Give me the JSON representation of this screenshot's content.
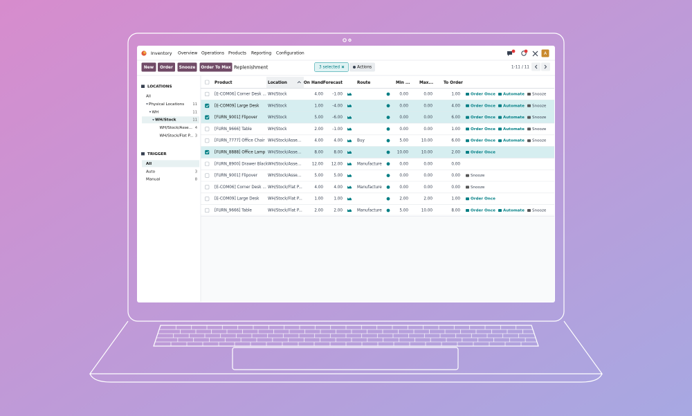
{
  "navbar": {
    "app": "Inventory",
    "menu": [
      "Overview",
      "Operations",
      "Products",
      "Reporting",
      "Configuration"
    ],
    "avatar": "A"
  },
  "control_panel": {
    "buttons": [
      "New",
      "Order",
      "Snooze",
      "Order To Max"
    ],
    "title": "Replenishment",
    "selection": "3 selected",
    "actions": "Actions",
    "pager": "1-11 / 11"
  },
  "sidebar": {
    "sections": [
      {
        "title": "LOCATIONS",
        "items": [
          {
            "label": "All",
            "level": 0
          },
          {
            "label": "Physical Locations",
            "count": "11",
            "level": 0,
            "expanded": true
          },
          {
            "label": "WH",
            "count": "11",
            "level": 1,
            "expanded": true
          },
          {
            "label": "WH/Stock",
            "count": "11",
            "level": 2,
            "expanded": true,
            "active": true
          },
          {
            "label": "WH/Stock/Asse...",
            "count": "4",
            "level": 3
          },
          {
            "label": "WH/Stock/Flat P...",
            "count": "3",
            "level": 3
          }
        ]
      },
      {
        "title": "TRIGGER",
        "items": [
          {
            "label": "All",
            "level": 0,
            "active": true
          },
          {
            "label": "Auto",
            "count": "3",
            "level": 0
          },
          {
            "label": "Manual",
            "count": "8",
            "level": 0
          }
        ]
      }
    ]
  },
  "table": {
    "columns": [
      "Product",
      "Location",
      "On Hand",
      "Forecast",
      "Route",
      "Min ...",
      "Max...",
      "To Order"
    ],
    "rows": [
      {
        "product": "[E-COM06] Corner Desk ...",
        "location": "WH/Stock",
        "on_hand": "4.00",
        "forecast": "-1.00",
        "min": "0.00",
        "max": "0.00",
        "to_order": "1.00",
        "actions": [
          "Order Once",
          "Automate",
          "Snooze"
        ]
      },
      {
        "product": "[E-COM09] Large Desk",
        "location": "WH/Stock",
        "on_hand": "1.00",
        "forecast": "-4.00",
        "min": "0.00",
        "max": "0.00",
        "to_order": "4.00",
        "actions": [
          "Order Once",
          "Automate",
          "Snooze"
        ],
        "selected": true
      },
      {
        "product": "[FURN_9001] Flipover",
        "location": "WH/Stock",
        "on_hand": "5.00",
        "forecast": "-6.00",
        "min": "0.00",
        "max": "0.00",
        "to_order": "6.00",
        "actions": [
          "Order Once",
          "Automate",
          "Snooze"
        ],
        "selected": true
      },
      {
        "product": "[FURN_9666] Table",
        "location": "WH/Stock",
        "on_hand": "2.00",
        "forecast": "-1.00",
        "min": "0.00",
        "max": "0.00",
        "to_order": "1.00",
        "actions": [
          "Order Once",
          "Automate",
          "Snooze"
        ]
      },
      {
        "product": "[FURN_7777] Office Chair",
        "location": "WH/Stock/Asse...",
        "on_hand": "4.00",
        "forecast": "4.00",
        "route": "Buy",
        "min": "5.00",
        "max": "10.00",
        "to_order": "6.00",
        "actions": [
          "Order Once",
          "Automate",
          "Snooze"
        ]
      },
      {
        "product": "[FURN_8888] Office Lamp",
        "location": "WH/Stock/Asse...",
        "on_hand": "8.00",
        "forecast": "8.00",
        "min": "10.00",
        "max": "10.00",
        "to_order": "2.00",
        "actions": [
          "Order Once"
        ],
        "selected": true
      },
      {
        "product": "[FURN_8900] Drawer Black",
        "location": "WH/Stock/Asse...",
        "on_hand": "12.00",
        "forecast": "12.00",
        "route": "Manufacture",
        "min": "0.00",
        "max": "0.00",
        "to_order": "0.00"
      },
      {
        "product": "[FURN_9001] Flipover",
        "location": "WH/Stock/Asse...",
        "on_hand": "5.00",
        "forecast": "5.00",
        "min": "0.00",
        "max": "0.00",
        "to_order": "0.00",
        "actions": [
          "Snooze"
        ]
      },
      {
        "product": "[E-COM06] Corner Desk ...",
        "location": "WH/Stock/Flat P...",
        "on_hand": "4.00",
        "forecast": "4.00",
        "route": "Manufacture",
        "min": "0.00",
        "max": "0.00",
        "to_order": "0.00",
        "actions": [
          "Snooze"
        ]
      },
      {
        "product": "[E-COM09] Large Desk",
        "location": "WH/Stock/Flat P...",
        "on_hand": "1.00",
        "forecast": "1.00",
        "min": "2.00",
        "max": "2.00",
        "to_order": "1.00",
        "actions": [
          "Order Once"
        ]
      },
      {
        "product": "[FURN_9666] Table",
        "location": "WH/Stock/Flat P...",
        "on_hand": "2.00",
        "forecast": "2.00",
        "route": "Manufacture",
        "min": "5.00",
        "max": "10.00",
        "to_order": "8.00",
        "actions": [
          "Order Once",
          "Automate",
          "Snooze"
        ]
      }
    ]
  }
}
